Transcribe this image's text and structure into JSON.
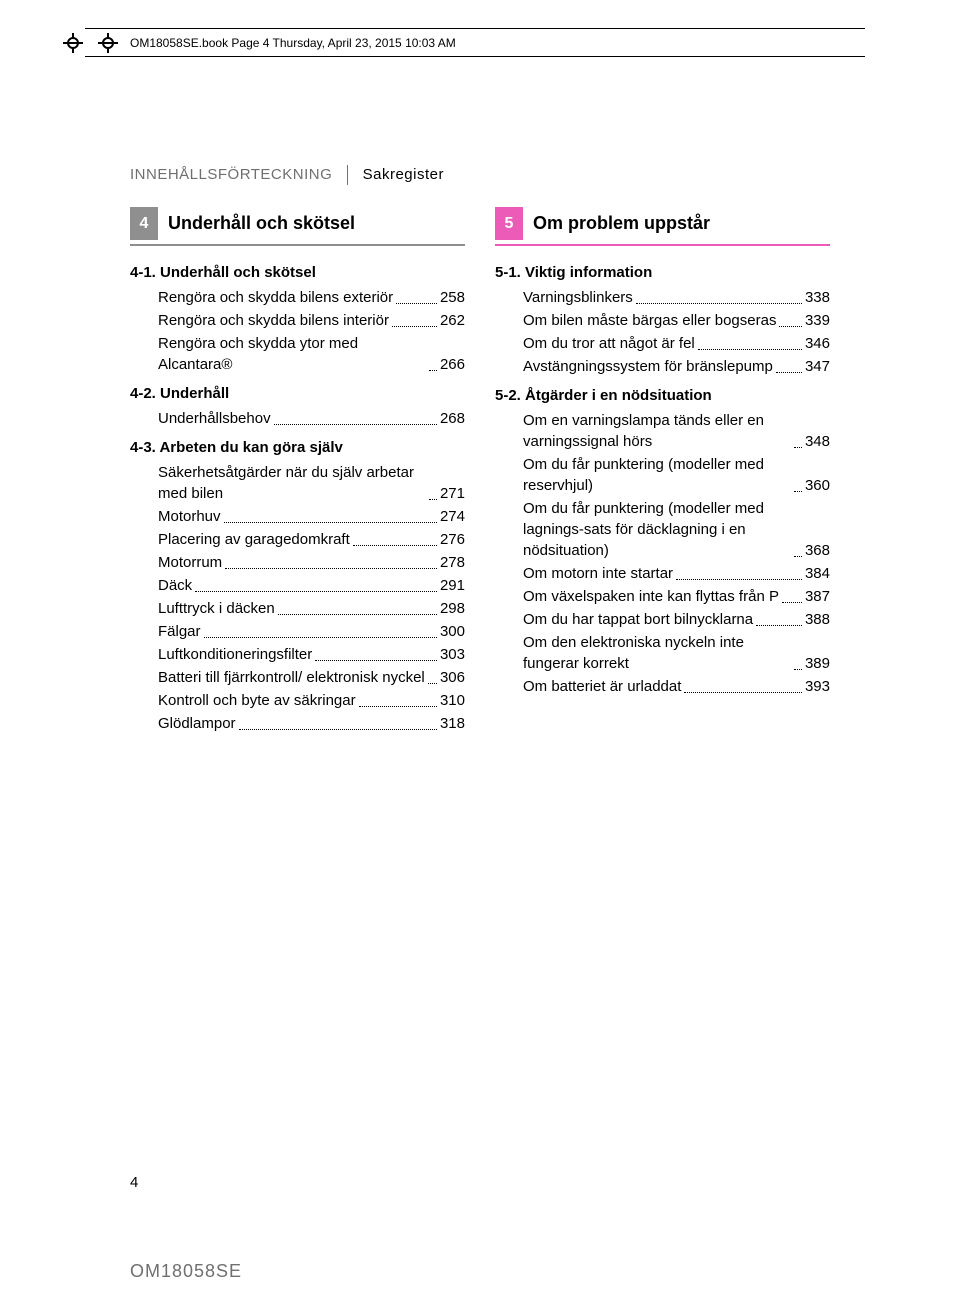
{
  "header": {
    "text": "OM18058SE.book  Page 4  Thursday, April 23, 2015  10:03 AM"
  },
  "breadcrumb": {
    "first": "INNEHÅLLSFÖRTECKNING",
    "second": "Sakregister"
  },
  "colors": {
    "gray": "#8f8f8f",
    "magenta": "#ec5bb8",
    "text_muted": "#6f6f6f"
  },
  "left": {
    "chapter_num": "4",
    "chapter_title": "Underhåll och skötsel",
    "sections": [
      {
        "head": "4-1. Underhåll och skötsel",
        "entries": [
          {
            "label": "Rengöra och skydda bilens exteriör",
            "page": "258"
          },
          {
            "label": "Rengöra och skydda bilens interiör",
            "page": "262"
          },
          {
            "label": "Rengöra och skydda ytor med Alcantara®",
            "page": "266"
          }
        ]
      },
      {
        "head": "4-2. Underhåll",
        "entries": [
          {
            "label": "Underhållsbehov",
            "page": "268"
          }
        ]
      },
      {
        "head": "4-3. Arbeten du kan göra själv",
        "entries": [
          {
            "label": "Säkerhetsåtgärder när du själv arbetar med bilen",
            "page": "271"
          },
          {
            "label": "Motorhuv",
            "page": "274"
          },
          {
            "label": "Placering av garagedomkraft",
            "page": "276"
          },
          {
            "label": "Motorrum",
            "page": "278"
          },
          {
            "label": "Däck",
            "page": "291"
          },
          {
            "label": "Lufttryck i däcken",
            "page": "298"
          },
          {
            "label": "Fälgar",
            "page": "300"
          },
          {
            "label": "Luftkonditioneringsfilter",
            "page": "303"
          },
          {
            "label": "Batteri till fjärrkontroll/ elektronisk nyckel",
            "page": "306"
          },
          {
            "label": "Kontroll och byte av säkringar",
            "page": "310"
          },
          {
            "label": "Glödlampor",
            "page": "318"
          }
        ]
      }
    ]
  },
  "right": {
    "chapter_num": "5",
    "chapter_title": "Om problem uppstår",
    "sections": [
      {
        "head": "5-1. Viktig information",
        "entries": [
          {
            "label": "Varningsblinkers",
            "page": "338"
          },
          {
            "label": "Om bilen måste bärgas eller bogseras",
            "page": "339"
          },
          {
            "label": "Om du tror att något är fel",
            "page": "346"
          },
          {
            "label": "Avstängningssystem för bränslepump",
            "page": "347"
          }
        ]
      },
      {
        "head": "5-2. Åtgärder i en nödsituation",
        "entries": [
          {
            "label": "Om en varningslampa tänds eller en varningssignal hörs",
            "page": "348"
          },
          {
            "label": "Om du får punktering (modeller med reservhjul)",
            "page": "360"
          },
          {
            "label": "Om du får punktering (modeller med lagnings-sats för däcklagning i en nödsituation)",
            "page": "368"
          },
          {
            "label": "Om motorn inte startar",
            "page": "384"
          },
          {
            "label": "Om växelspaken inte kan flyttas från P",
            "page": "387"
          },
          {
            "label": "Om du har tappat bort bilnycklarna",
            "page": "388"
          },
          {
            "label": "Om den elektroniska nyckeln inte fungerar korrekt",
            "page": "389"
          },
          {
            "label": "Om batteriet är urladdat",
            "page": "393"
          }
        ]
      }
    ]
  },
  "footer": {
    "page_num": "4",
    "code": "OM18058SE"
  }
}
